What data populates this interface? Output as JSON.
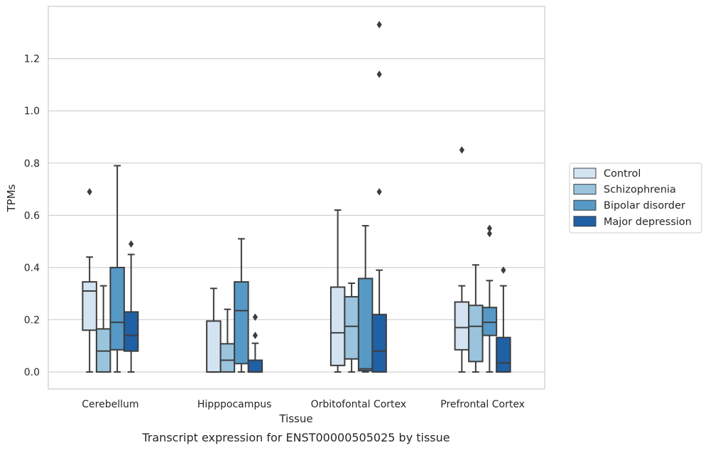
{
  "caption": "Transcript expression for ENST00000505025 by tissue",
  "chart_data": {
    "type": "box",
    "title": "",
    "xlabel": "Tissue",
    "ylabel": "TPMs",
    "ylim": [
      -0.065,
      1.4
    ],
    "yticks": [
      "0.0",
      "0.2",
      "0.4",
      "0.6",
      "0.8",
      "1.0",
      "1.2"
    ],
    "grid": "horizontal",
    "legend_position": "right",
    "categories": [
      "Cerebellum",
      "Hipppocampus",
      "Orbitofontal Cortex",
      "Prefrontal Cortex"
    ],
    "series": [
      {
        "name": "Control",
        "color": "#d4e3f2",
        "boxes": [
          {
            "whislo": 0.0,
            "q1": 0.16,
            "med": 0.31,
            "q3": 0.345,
            "whishi": 0.44,
            "fliers": [
              0.69
            ]
          },
          {
            "whislo": 0.0,
            "q1": 0.0,
            "med": 0.0,
            "q3": 0.195,
            "whishi": 0.32,
            "fliers": []
          },
          {
            "whislo": 0.0,
            "q1": 0.025,
            "med": 0.15,
            "q3": 0.325,
            "whishi": 0.62,
            "fliers": []
          },
          {
            "whislo": 0.0,
            "q1": 0.085,
            "med": 0.17,
            "q3": 0.268,
            "whishi": 0.33,
            "fliers": [
              0.85
            ]
          }
        ]
      },
      {
        "name": "Schizophrenia",
        "color": "#9ac4dd",
        "boxes": [
          {
            "whislo": 0.0,
            "q1": 0.0,
            "med": 0.08,
            "q3": 0.165,
            "whishi": 0.33,
            "fliers": []
          },
          {
            "whislo": 0.0,
            "q1": 0.0,
            "med": 0.045,
            "q3": 0.108,
            "whishi": 0.24,
            "fliers": []
          },
          {
            "whislo": 0.0,
            "q1": 0.05,
            "med": 0.175,
            "q3": 0.288,
            "whishi": 0.34,
            "fliers": []
          },
          {
            "whislo": 0.0,
            "q1": 0.04,
            "med": 0.175,
            "q3": 0.255,
            "whishi": 0.41,
            "fliers": []
          }
        ]
      },
      {
        "name": "Bipolar disorder",
        "color": "#5699c6",
        "boxes": [
          {
            "whislo": 0.0,
            "q1": 0.085,
            "med": 0.19,
            "q3": 0.4,
            "whishi": 0.79,
            "fliers": []
          },
          {
            "whislo": 0.0,
            "q1": 0.032,
            "med": 0.235,
            "q3": 0.345,
            "whishi": 0.51,
            "fliers": []
          },
          {
            "whislo": 0.0,
            "q1": 0.005,
            "med": 0.012,
            "q3": 0.358,
            "whishi": 0.56,
            "fliers": []
          },
          {
            "whislo": 0.0,
            "q1": 0.14,
            "med": 0.19,
            "q3": 0.247,
            "whishi": 0.35,
            "fliers": [
              0.53,
              0.55
            ]
          }
        ]
      },
      {
        "name": "Major depression",
        "color": "#2060a5",
        "boxes": [
          {
            "whislo": 0.0,
            "q1": 0.08,
            "med": 0.14,
            "q3": 0.23,
            "whishi": 0.45,
            "fliers": [
              0.49
            ]
          },
          {
            "whislo": 0.0,
            "q1": 0.0,
            "med": 0.0,
            "q3": 0.045,
            "whishi": 0.11,
            "fliers": [
              0.14,
              0.21
            ]
          },
          {
            "whislo": 0.0,
            "q1": 0.0,
            "med": 0.08,
            "q3": 0.22,
            "whishi": 0.39,
            "fliers": [
              0.69,
              1.14,
              1.33
            ]
          },
          {
            "whislo": 0.0,
            "q1": 0.0,
            "med": 0.035,
            "q3": 0.132,
            "whishi": 0.33,
            "fliers": [
              0.39
            ]
          }
        ]
      }
    ]
  }
}
